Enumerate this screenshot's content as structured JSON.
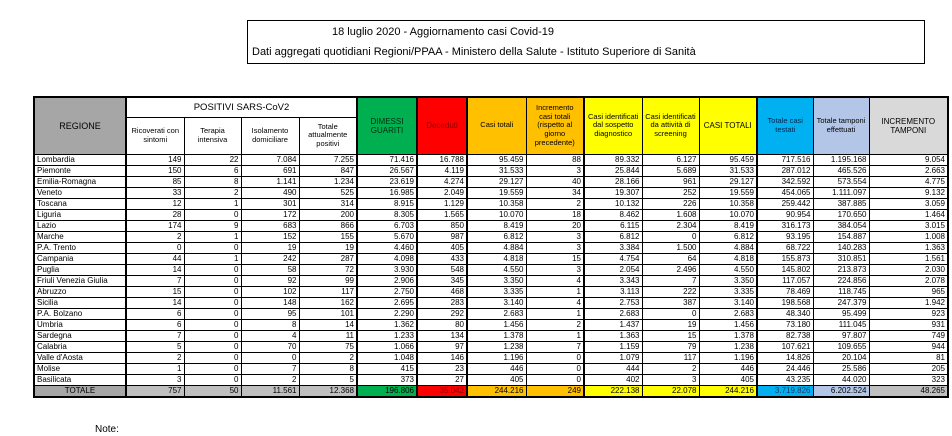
{
  "title": {
    "line1": "18 luglio 2020 - Aggiornamento casi Covid-19",
    "line2": "Dati aggregati quotidiani Regioni/PPAA - Ministero della Salute - Istituto Superiore di Sanità"
  },
  "note": "Note:",
  "colors": {
    "green": "#00b050",
    "red": "#ff0000",
    "red_text": "#8b0000",
    "orange": "#ffc000",
    "yellow": "#ffff00",
    "cyan": "#00b0f0",
    "cyan_total_text": "#1f3864",
    "light_blue": "#b4c6e7",
    "light_gray": "#d9d9d9",
    "header_gray": "#a6a6a6",
    "total_gray": "#bfbfbf"
  },
  "table": {
    "header": {
      "region_label": "REGIONE",
      "group_label": "POSITIVI SARS-CoV2",
      "sub_columns": [
        "Ricoverati con sintomi",
        "Terapia intensiva",
        "Isolamento domiciliare",
        "Totale attualmente positivi"
      ],
      "columns": [
        {
          "label": "DIMESSI GUARITI",
          "bg": "#00b050",
          "color": "#002b0f",
          "bold": true
        },
        {
          "label": "Deceduti",
          "bg": "#ff0000",
          "color": "#8b0000",
          "bold": true
        },
        {
          "label": "Casi totali",
          "bg": "#ffc000",
          "color": "#000000",
          "bold": false
        },
        {
          "label": "Incremento casi totali (rispetto al giorno precedente)",
          "bg": "#ffc000",
          "color": "#000000",
          "bold": false
        },
        {
          "label": "Casi identificati dal sospetto diagnostico",
          "bg": "#ffff00",
          "color": "#000000",
          "bold": false
        },
        {
          "label": "Casi identificati da attività di screening",
          "bg": "#ffff00",
          "color": "#000000",
          "bold": false
        },
        {
          "label": "CASI TOTALI",
          "bg": "#ffff00",
          "color": "#000000",
          "bold": true
        },
        {
          "label": "Totale casi testati",
          "bg": "#00b0f0",
          "color": "#00264d",
          "bold": false
        },
        {
          "label": "Totale tamponi effettuati",
          "bg": "#b4c6e7",
          "color": "#000000",
          "bold": false
        },
        {
          "label": "INCREMENTO TAMPONI",
          "bg": "#d9d9d9",
          "color": "#000000",
          "bold": true
        }
      ]
    },
    "rows": [
      {
        "region": "Lombardia",
        "values": [
          "149",
          "22",
          "7.084",
          "7.255",
          "71.416",
          "16.788",
          "95.459",
          "88",
          "89.332",
          "6.127",
          "95.459",
          "717.516",
          "1.195.168",
          "9.054"
        ]
      },
      {
        "region": "Piemonte",
        "values": [
          "150",
          "6",
          "691",
          "847",
          "26.567",
          "4.119",
          "31.533",
          "3",
          "25.844",
          "5.689",
          "31.533",
          "287.012",
          "465.526",
          "2.663"
        ]
      },
      {
        "region": "Emilia-Romagna",
        "values": [
          "85",
          "8",
          "1.141",
          "1.234",
          "23.619",
          "4.274",
          "29.127",
          "40",
          "28.166",
          "961",
          "29.127",
          "342.592",
          "573.554",
          "4.775"
        ]
      },
      {
        "region": "Veneto",
        "values": [
          "33",
          "2",
          "490",
          "525",
          "16.985",
          "2.049",
          "19.559",
          "34",
          "19.307",
          "252",
          "19.559",
          "454.065",
          "1.111.097",
          "9.132"
        ]
      },
      {
        "region": "Toscana",
        "values": [
          "12",
          "1",
          "301",
          "314",
          "8.915",
          "1.129",
          "10.358",
          "2",
          "10.132",
          "226",
          "10.358",
          "259.442",
          "387.885",
          "3.059"
        ]
      },
      {
        "region": "Liguria",
        "values": [
          "28",
          "0",
          "172",
          "200",
          "8.305",
          "1.565",
          "10.070",
          "18",
          "8.462",
          "1.608",
          "10.070",
          "90.954",
          "170.650",
          "1.464"
        ]
      },
      {
        "region": "Lazio",
        "values": [
          "174",
          "9",
          "683",
          "866",
          "6.703",
          "850",
          "8.419",
          "20",
          "6.115",
          "2.304",
          "8.419",
          "316.173",
          "384.054",
          "3.015"
        ]
      },
      {
        "region": "Marche",
        "values": [
          "2",
          "1",
          "152",
          "155",
          "5.670",
          "987",
          "6.812",
          "3",
          "6.812",
          "0",
          "6.812",
          "93.195",
          "154.887",
          "1.008"
        ]
      },
      {
        "region": "P.A. Trento",
        "values": [
          "0",
          "0",
          "19",
          "19",
          "4.460",
          "405",
          "4.884",
          "3",
          "3.384",
          "1.500",
          "4.884",
          "68.722",
          "140.283",
          "1.363"
        ]
      },
      {
        "region": "Campania",
        "values": [
          "44",
          "1",
          "242",
          "287",
          "4.098",
          "433",
          "4.818",
          "15",
          "4.754",
          "64",
          "4.818",
          "155.873",
          "310.851",
          "1.561"
        ]
      },
      {
        "region": "Puglia",
        "values": [
          "14",
          "0",
          "58",
          "72",
          "3.930",
          "548",
          "4.550",
          "3",
          "2.054",
          "2.496",
          "4.550",
          "145.802",
          "213.873",
          "2.030"
        ]
      },
      {
        "region": "Friuli Venezia Giulia",
        "values": [
          "7",
          "0",
          "92",
          "99",
          "2.906",
          "345",
          "3.350",
          "4",
          "3.343",
          "7",
          "3.350",
          "117.057",
          "224.856",
          "2.078"
        ]
      },
      {
        "region": "Abruzzo",
        "values": [
          "15",
          "0",
          "102",
          "117",
          "2.750",
          "468",
          "3.335",
          "1",
          "3.113",
          "222",
          "3.335",
          "78.469",
          "118.745",
          "965"
        ]
      },
      {
        "region": "Sicilia",
        "values": [
          "14",
          "0",
          "148",
          "162",
          "2.695",
          "283",
          "3.140",
          "4",
          "2.753",
          "387",
          "3.140",
          "198.568",
          "247.379",
          "1.942"
        ]
      },
      {
        "region": "P.A. Bolzano",
        "values": [
          "6",
          "0",
          "95",
          "101",
          "2.290",
          "292",
          "2.683",
          "1",
          "2.683",
          "0",
          "2.683",
          "48.340",
          "95.499",
          "923"
        ]
      },
      {
        "region": "Umbria",
        "values": [
          "6",
          "0",
          "8",
          "14",
          "1.362",
          "80",
          "1.456",
          "2",
          "1.437",
          "19",
          "1.456",
          "73.180",
          "111.045",
          "931"
        ]
      },
      {
        "region": "Sardegna",
        "values": [
          "7",
          "0",
          "4",
          "11",
          "1.233",
          "134",
          "1.378",
          "1",
          "1.363",
          "15",
          "1.378",
          "82.738",
          "97.807",
          "749"
        ]
      },
      {
        "region": "Calabria",
        "values": [
          "5",
          "0",
          "70",
          "75",
          "1.066",
          "97",
          "1.238",
          "7",
          "1.159",
          "79",
          "1.238",
          "107.621",
          "109.655",
          "944"
        ]
      },
      {
        "region": "Valle d'Aosta",
        "values": [
          "2",
          "0",
          "0",
          "2",
          "1.048",
          "146",
          "1.196",
          "0",
          "1.079",
          "117",
          "1.196",
          "14.826",
          "20.104",
          "81"
        ]
      },
      {
        "region": "Molise",
        "values": [
          "1",
          "0",
          "7",
          "8",
          "415",
          "23",
          "446",
          "0",
          "444",
          "2",
          "446",
          "24.446",
          "25.586",
          "205"
        ]
      },
      {
        "region": "Basilicata",
        "values": [
          "3",
          "0",
          "2",
          "5",
          "373",
          "27",
          "405",
          "0",
          "402",
          "3",
          "405",
          "43.235",
          "44.020",
          "323"
        ]
      }
    ],
    "total": {
      "label": "TOTALE",
      "values": [
        "757",
        "50",
        "11.561",
        "12.368",
        "196.806",
        "35.042",
        "244.216",
        "249",
        "222.138",
        "22.078",
        "244.216",
        "3.719.826",
        "6.202.524",
        "48.265"
      ]
    }
  }
}
